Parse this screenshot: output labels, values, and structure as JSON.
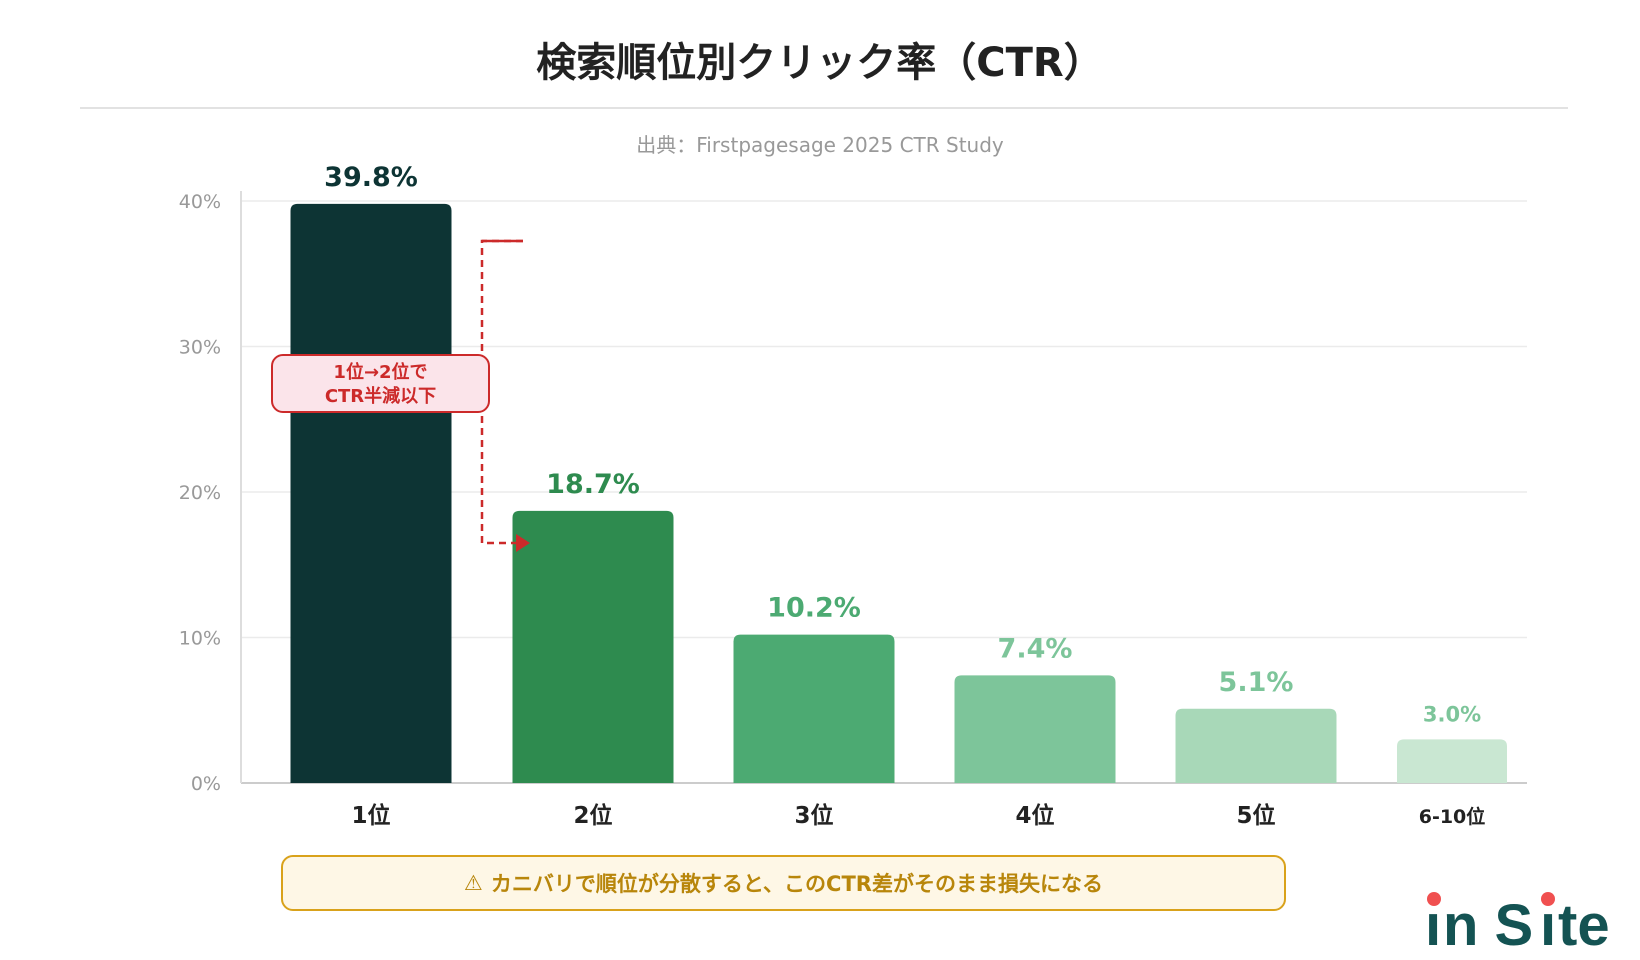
{
  "title": "検索順位別クリック率（CTR）",
  "subtitle": "出典：Firstpagesage 2025 CTR Study",
  "chart_data": {
    "type": "bar",
    "categories": [
      "1位",
      "2位",
      "3位",
      "4位",
      "5位",
      "6-10位"
    ],
    "values": [
      39.8,
      18.7,
      10.2,
      7.4,
      5.1,
      3.0
    ],
    "data_labels": [
      "39.8%",
      "18.7%",
      "10.2%",
      "7.4%",
      "5.1%",
      "3.0%"
    ],
    "colors": [
      "#0d3434",
      "#2e8b4f",
      "#4caa72",
      "#7dc59a",
      "#a8d8b8",
      "#c9e7d2"
    ],
    "label_colors": [
      "#0d3434",
      "#2e8b4f",
      "#4caa72",
      "#7dc59a",
      "#7dc59a",
      "#7dc59a"
    ],
    "ylim": [
      0,
      40
    ],
    "yticks": [
      0,
      10,
      20,
      30,
      40
    ],
    "ytick_labels": [
      "0%",
      "10%",
      "20%",
      "30%",
      "40%"
    ],
    "grid": true,
    "annotation": {
      "line1": "1位→2位で",
      "line2": "CTR半減以下",
      "color": "#cc2a2a"
    }
  },
  "banner": {
    "icon": "warning-icon",
    "text": "カニバリで順位が分散すると、このCTR差がそのまま損失になる"
  },
  "logo": {
    "text": "in Site",
    "color": "#145353",
    "dot_color": "#f05050"
  }
}
